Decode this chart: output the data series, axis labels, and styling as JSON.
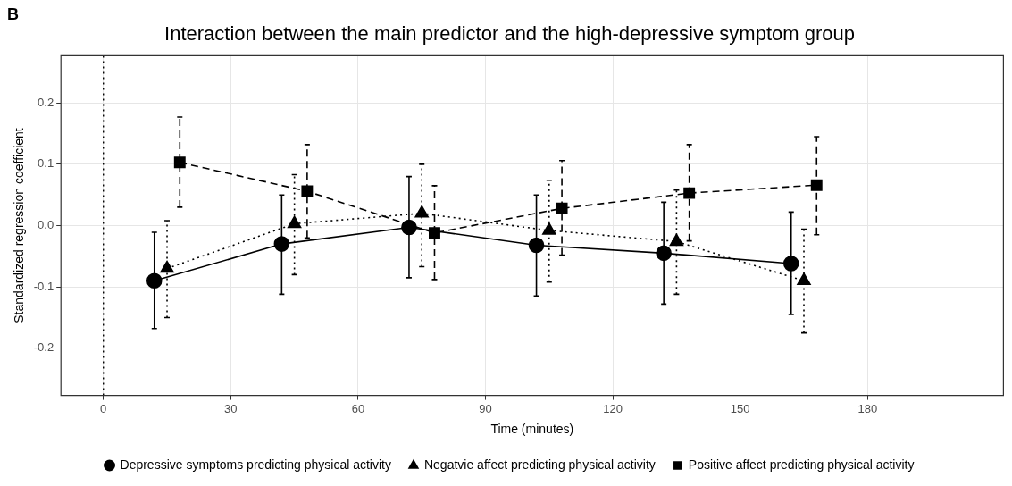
{
  "chart_data": {
    "type": "line",
    "title": "Interaction between the main predictor and the high-depressive symptom group",
    "xlabel": "Time (minutes)",
    "ylabel": "Standardized regression coefficient",
    "annotations": [
      "B"
    ],
    "xlim": [
      -10,
      212
    ],
    "xticks": [
      0,
      30,
      60,
      90,
      120,
      150,
      180
    ],
    "ylim": [
      -0.277,
      0.277
    ],
    "yticks": [
      {
        "value": -0.2,
        "label": "-0.2"
      },
      {
        "value": -0.1,
        "label": "-0.1"
      },
      {
        "value": 0,
        "label": "0.0"
      },
      {
        "value": 0.1,
        "label": "0.1"
      },
      {
        "value": 0.2,
        "label": "0.2"
      }
    ],
    "grid": true,
    "legend": "bottom",
    "ref_lines": [
      {
        "axis": "x",
        "value": 0,
        "line_style": "dotted",
        "color": "#000000"
      }
    ],
    "series": [
      {
        "name": "Depressive symptoms predicting physical activity",
        "color": "#000000",
        "marker": "circle",
        "line_style": "solid",
        "x": [
          12,
          42,
          72,
          102,
          132,
          162
        ],
        "values": [
          -0.09,
          -0.03,
          -0.003,
          -0.032,
          -0.045,
          -0.062
        ],
        "errors": [
          [
            -0.168,
            -0.011
          ],
          [
            -0.112,
            0.05
          ],
          [
            -0.085,
            0.08
          ],
          [
            -0.115,
            0.05
          ],
          [
            -0.128,
            0.038
          ],
          [
            -0.145,
            0.022
          ]
        ]
      },
      {
        "name": "Negatvie affect predicting physical activity",
        "color": "#000000",
        "marker": "triangle",
        "line_style": "dotted",
        "x": [
          15,
          45,
          75,
          105,
          135,
          165
        ],
        "values": [
          -0.07,
          0.003,
          0.02,
          -0.008,
          -0.026,
          -0.09
        ],
        "errors": [
          [
            -0.15,
            0.008
          ],
          [
            -0.08,
            0.083
          ],
          [
            -0.067,
            0.1
          ],
          [
            -0.092,
            0.074
          ],
          [
            -0.112,
            0.058
          ],
          [
            -0.175,
            -0.006
          ]
        ]
      },
      {
        "name": "Positive affect predicting physical activity",
        "color": "#000000",
        "marker": "square",
        "line_style": "dashed",
        "x": [
          18,
          48,
          78,
          108,
          138,
          168
        ],
        "values": [
          0.103,
          0.056,
          -0.012,
          0.028,
          0.053,
          0.066
        ],
        "errors": [
          [
            0.03,
            0.177
          ],
          [
            -0.02,
            0.132
          ],
          [
            -0.088,
            0.065
          ],
          [
            -0.048,
            0.106
          ],
          [
            -0.025,
            0.132
          ],
          [
            -0.015,
            0.145
          ]
        ]
      }
    ]
  }
}
